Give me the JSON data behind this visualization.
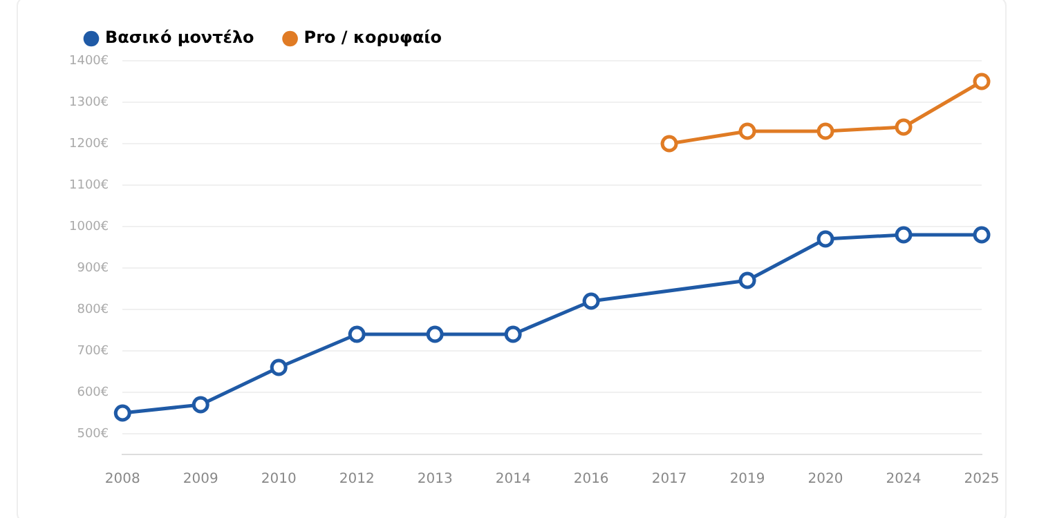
{
  "chart_data": {
    "type": "line",
    "categories": [
      "2008",
      "2009",
      "2010",
      "2012",
      "2013",
      "2014",
      "2016",
      "2017",
      "2019",
      "2020",
      "2024",
      "2025"
    ],
    "series": [
      {
        "name": "Βασικό μοντέλο",
        "color": "#1f5aa6",
        "values": [
          550,
          570,
          660,
          740,
          740,
          740,
          820,
          null,
          870,
          970,
          980,
          980
        ]
      },
      {
        "name": "Pro / κορυφαίο",
        "color": "#e07b24",
        "values": [
          null,
          null,
          null,
          null,
          null,
          null,
          null,
          1200,
          1230,
          1230,
          1240,
          1350
        ]
      }
    ],
    "ylim": [
      450,
      1400
    ],
    "yticks": [
      {
        "value": 500,
        "label": "500€"
      },
      {
        "value": 600,
        "label": "600€"
      },
      {
        "value": 700,
        "label": "700€"
      },
      {
        "value": 800,
        "label": "800€"
      },
      {
        "value": 900,
        "label": "900€"
      },
      {
        "value": 1000,
        "label": "1000€"
      },
      {
        "value": 1100,
        "label": "1100€"
      },
      {
        "value": 1200,
        "label": "1200€"
      },
      {
        "value": 1300,
        "label": "1300€"
      },
      {
        "value": 1400,
        "label": "1400€"
      }
    ],
    "grid": "y",
    "legend": "top left",
    "marker": "circle",
    "line_style": "solid"
  }
}
